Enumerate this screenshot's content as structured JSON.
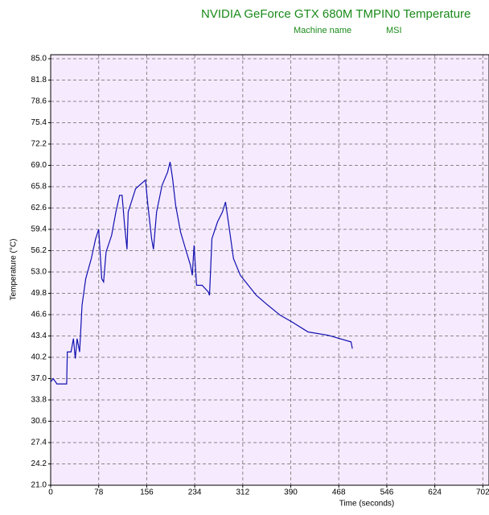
{
  "chart_data": {
    "type": "line",
    "title": "NVIDIA GeForce GTX 680M TMPIN0 Temperature",
    "machine_label": "Machine name",
    "machine": "MSI",
    "x_label": "Time (seconds)",
    "y_label": "Temperature (°C)",
    "xlim": [
      0,
      712
    ],
    "xticks": [
      0,
      78,
      156,
      234,
      312,
      390,
      468,
      546,
      624,
      702
    ],
    "ylim": [
      21,
      85.6
    ],
    "yticks": [
      {
        "value": 21,
        "label": "21.0"
      },
      24.2,
      27.4,
      30.6,
      33.8,
      {
        "value": 37,
        "label": "37.0"
      },
      40.2,
      43.4,
      46.6,
      49.8,
      {
        "value": 53,
        "label": "53.0"
      },
      56.2,
      59.4,
      62.6,
      65.8,
      {
        "value": 69,
        "label": "69.0"
      },
      72.2,
      75.4,
      78.6,
      81.8,
      {
        "value": 85,
        "label": "85.0"
      }
    ],
    "grid": true,
    "background": "#f6eaff",
    "x": [
      0,
      4,
      8,
      10,
      26,
      27,
      33,
      37,
      40,
      43,
      47,
      51,
      57,
      66,
      73,
      78,
      83,
      86,
      90,
      99,
      106,
      112,
      116,
      120,
      124,
      126,
      138,
      154,
      158,
      164,
      167,
      172,
      181,
      190,
      194,
      198,
      203,
      211,
      219,
      227,
      230,
      233,
      237,
      246,
      256,
      258,
      262,
      271,
      279,
      284,
      291,
      297,
      308,
      321,
      334,
      353,
      373,
      392,
      418,
      451,
      488,
      490
    ],
    "series": [
      {
        "name": "TMPIN0",
        "color": "#1010b0",
        "values": [
          36.5,
          37,
          36.5,
          36.2,
          36.2,
          41,
          41,
          43,
          40,
          43,
          41,
          48,
          52,
          55,
          58,
          59.4,
          52,
          51.5,
          56,
          58.5,
          62,
          64.5,
          64.5,
          60,
          56.4,
          62,
          65.5,
          66.8,
          63,
          58,
          56.4,
          62,
          66,
          68,
          69.5,
          67,
          63,
          59,
          56.5,
          54,
          52.5,
          57,
          51,
          51,
          50,
          49.5,
          58,
          60.5,
          62,
          63.5,
          59,
          55,
          52.5,
          51,
          49.5,
          48,
          46.5,
          45.5,
          44,
          43.5,
          42.5,
          41.5
        ]
      }
    ]
  }
}
